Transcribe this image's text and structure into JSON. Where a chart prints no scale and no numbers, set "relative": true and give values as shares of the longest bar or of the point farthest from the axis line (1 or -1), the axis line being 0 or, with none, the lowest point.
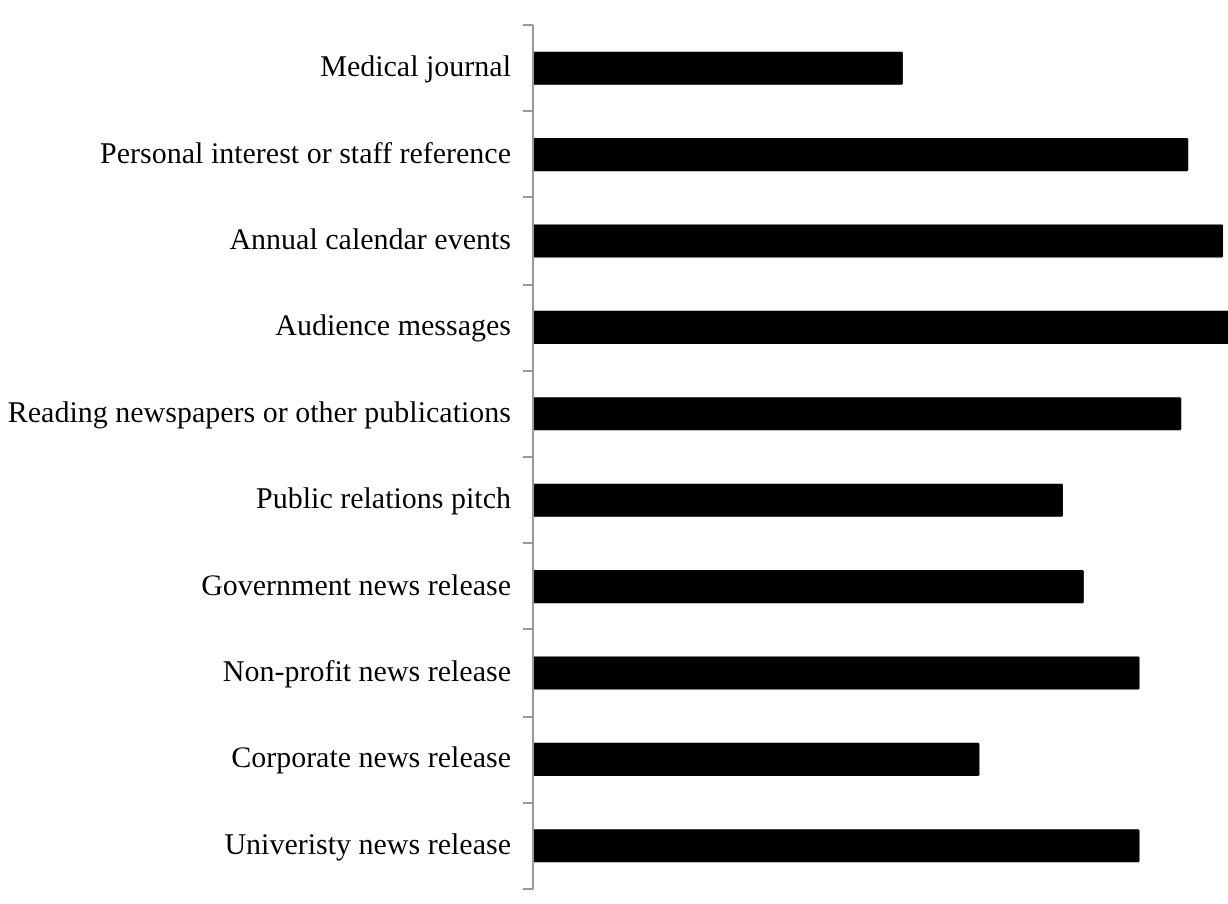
{
  "chart_data": {
    "type": "bar",
    "orientation": "horizontal",
    "relative": true,
    "color": "#000000",
    "categories": [
      "Medical journal",
      "Personal interest or staff reference",
      "Annual calendar events",
      "Audience messages",
      "Reading newspapers or other publications",
      "Public relations pitch",
      "Government news release",
      "Non-profit news release",
      "Corporate news release",
      "Univeristy news release"
    ],
    "values": [
      0.53,
      0.94,
      0.99,
      1,
      0.93,
      0.76,
      0.79,
      0.87,
      0.64,
      0.87
    ]
  }
}
